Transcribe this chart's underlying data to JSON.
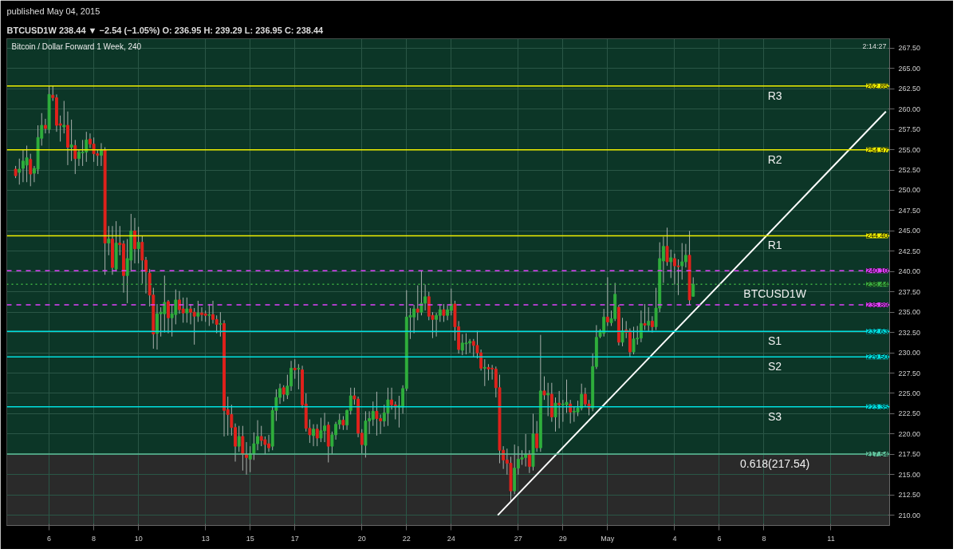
{
  "chart_data": {
    "type": "candlestick",
    "title": "Bitcoin / Dollar Forward 1 Week, 240",
    "subtitle": "BTCUSD1W  238.44 ▼ −2.54 (−1.05%)  O: 236.95  H: 239.29  L: 236.95  C: 238.44",
    "annotations": [
      "published May 04, 2015",
      "2:14:27",
      {
        "text": "262.85",
        "x": "2015-05-13T15:00",
        "y": 262.85
      },
      {
        "text": "254.97",
        "x": "2015-05-13T15:00",
        "y": 254.97
      },
      {
        "text": "244.40",
        "x": "2015-05-13T15:00",
        "y": 244.4
      },
      {
        "text": "240.10",
        "x": "2015-05-13T15:00",
        "y": 240.1
      },
      {
        "text": "238.44",
        "x": "2015-05-13T15:00",
        "y": 238.44
      },
      {
        "text": "235.89",
        "x": "2015-05-13T15:00",
        "y": 235.89
      },
      {
        "text": "232.63",
        "x": "2015-05-13T15:00",
        "y": 232.63
      },
      {
        "text": "229.50",
        "x": "2015-05-13T15:00",
        "y": 229.5
      },
      {
        "text": "223.35",
        "x": "2015-05-13T15:00",
        "y": 223.35
      },
      {
        "text": "217.54",
        "x": "2015-05-13T15:00",
        "y": 217.54
      }
    ],
    "x": [
      "2015-04-04T12:00",
      "2015-04-04T16:00",
      "2015-04-04T20:00",
      "2015-04-05T00:00",
      "2015-04-05T04:00",
      "2015-04-05T08:00",
      "2015-04-05T12:00",
      "2015-04-05T16:00",
      "2015-04-05T20:00",
      "2015-04-06T00:00",
      "2015-04-06T04:00",
      "2015-04-06T08:00",
      "2015-04-06T12:00",
      "2015-04-06T16:00",
      "2015-04-06T20:00",
      "2015-04-07T00:00",
      "2015-04-07T04:00",
      "2015-04-07T08:00",
      "2015-04-07T12:00",
      "2015-04-07T16:00",
      "2015-04-07T20:00",
      "2015-04-08T00:00",
      "2015-04-08T04:00",
      "2015-04-08T08:00",
      "2015-04-08T12:00",
      "2015-04-08T16:00",
      "2015-04-08T20:00",
      "2015-04-09T00:00",
      "2015-04-09T04:00",
      "2015-04-09T08:00",
      "2015-04-09T12:00",
      "2015-04-09T16:00",
      "2015-04-09T20:00",
      "2015-04-10T00:00",
      "2015-04-10T04:00",
      "2015-04-10T08:00",
      "2015-04-10T12:00",
      "2015-04-10T16:00",
      "2015-04-10T20:00",
      "2015-04-11T00:00",
      "2015-04-11T04:00",
      "2015-04-11T08:00",
      "2015-04-11T12:00",
      "2015-04-11T16:00",
      "2015-04-11T20:00",
      "2015-04-12T00:00",
      "2015-04-12T04:00",
      "2015-04-12T08:00",
      "2015-04-12T12:00",
      "2015-04-12T16:00",
      "2015-04-12T20:00",
      "2015-04-13T00:00",
      "2015-04-13T04:00",
      "2015-04-13T08:00",
      "2015-04-13T12:00",
      "2015-04-13T16:00",
      "2015-04-13T20:00",
      "2015-04-14T00:00",
      "2015-04-14T04:00",
      "2015-04-14T08:00",
      "2015-04-14T12:00",
      "2015-04-14T16:00",
      "2015-04-14T20:00",
      "2015-04-15T00:00",
      "2015-04-15T04:00",
      "2015-04-15T08:00",
      "2015-04-15T12:00",
      "2015-04-15T16:00",
      "2015-04-15T20:00",
      "2015-04-16T00:00",
      "2015-04-16T04:00",
      "2015-04-16T08:00",
      "2015-04-16T12:00",
      "2015-04-16T16:00",
      "2015-04-16T20:00",
      "2015-04-17T00:00",
      "2015-04-17T04:00",
      "2015-04-17T08:00",
      "2015-04-17T12:00",
      "2015-04-17T16:00",
      "2015-04-17T20:00",
      "2015-04-18T00:00",
      "2015-04-18T04:00",
      "2015-04-18T08:00",
      "2015-04-18T12:00",
      "2015-04-18T16:00",
      "2015-04-18T20:00",
      "2015-04-19T00:00",
      "2015-04-19T04:00",
      "2015-04-19T08:00",
      "2015-04-19T12:00",
      "2015-04-19T16:00",
      "2015-04-19T20:00",
      "2015-04-20T00:00",
      "2015-04-20T04:00",
      "2015-04-20T08:00",
      "2015-04-20T12:00",
      "2015-04-20T16:00",
      "2015-04-20T20:00",
      "2015-04-21T00:00",
      "2015-04-21T04:00",
      "2015-04-21T08:00",
      "2015-04-21T12:00",
      "2015-04-21T16:00",
      "2015-04-21T20:00",
      "2015-04-22T00:00",
      "2015-04-22T04:00",
      "2015-04-22T08:00",
      "2015-04-22T12:00",
      "2015-04-22T16:00",
      "2015-04-22T20:00",
      "2015-04-23T00:00",
      "2015-04-23T04:00",
      "2015-04-23T08:00",
      "2015-04-23T12:00",
      "2015-04-23T16:00",
      "2015-04-23T20:00",
      "2015-04-24T00:00",
      "2015-04-24T04:00",
      "2015-04-24T08:00",
      "2015-04-24T12:00",
      "2015-04-24T16:00",
      "2015-04-24T20:00",
      "2015-04-25T00:00",
      "2015-04-25T04:00",
      "2015-04-25T08:00",
      "2015-04-25T12:00",
      "2015-04-25T16:00",
      "2015-04-25T20:00",
      "2015-04-26T00:00",
      "2015-04-26T04:00",
      "2015-04-26T08:00",
      "2015-04-26T12:00",
      "2015-04-26T16:00",
      "2015-04-26T20:00",
      "2015-04-27T00:00",
      "2015-04-27T04:00",
      "2015-04-27T08:00",
      "2015-04-27T12:00",
      "2015-04-27T16:00",
      "2015-04-27T20:00",
      "2015-04-28T00:00",
      "2015-04-28T04:00",
      "2015-04-28T08:00",
      "2015-04-28T12:00",
      "2015-04-28T16:00",
      "2015-04-28T20:00",
      "2015-04-29T00:00",
      "2015-04-29T04:00",
      "2015-04-29T08:00",
      "2015-04-29T12:00",
      "2015-04-29T16:00",
      "2015-04-29T20:00",
      "2015-04-30T00:00",
      "2015-04-30T04:00",
      "2015-04-30T08:00",
      "2015-04-30T12:00",
      "2015-04-30T16:00",
      "2015-04-30T20:00",
      "2015-05-01T00:00",
      "2015-05-01T04:00",
      "2015-05-01T08:00",
      "2015-05-01T12:00",
      "2015-05-01T16:00",
      "2015-05-01T20:00",
      "2015-05-02T00:00",
      "2015-05-02T04:00",
      "2015-05-02T08:00",
      "2015-05-02T12:00",
      "2015-05-02T16:00",
      "2015-05-02T20:00",
      "2015-05-03T00:00",
      "2015-05-03T04:00",
      "2015-05-03T08:00",
      "2015-05-03T12:00",
      "2015-05-03T16:00",
      "2015-05-03T20:00",
      "2015-05-04T00:00",
      "2015-05-04T04:00",
      "2015-05-04T08:00",
      "2015-05-04T12:00",
      "2015-05-04T16:00",
      "2015-05-04T20:00"
    ],
    "ohlc": [
      [
        252.6,
        253.0,
        251.5,
        251.8
      ],
      [
        252.2,
        253.9,
        250.7,
        252.6
      ],
      [
        252.7,
        255.0,
        251.0,
        253.6
      ],
      [
        253.1,
        255.5,
        251.0,
        254.0
      ],
      [
        253.8,
        254.5,
        250.5,
        252.0
      ],
      [
        252.1,
        253.0,
        251.0,
        252.7
      ],
      [
        252.6,
        258.0,
        252.0,
        256.5
      ],
      [
        256.4,
        259.5,
        255.5,
        258.0
      ],
      [
        258.0,
        258.8,
        257.0,
        257.6
      ],
      [
        257.5,
        262.9,
        257.0,
        261.8
      ],
      [
        261.7,
        262.85,
        261.0,
        261.4
      ],
      [
        261.4,
        261.8,
        257.2,
        258.0
      ],
      [
        258.2,
        259.2,
        256.0,
        258.0
      ],
      [
        257.8,
        261.0,
        257.0,
        258.0
      ],
      [
        258.0,
        259.7,
        253.1,
        255.3
      ],
      [
        255.3,
        258.7,
        253.6,
        255.6
      ],
      [
        255.5,
        256.2,
        252.0,
        253.9
      ],
      [
        253.9,
        255.0,
        253.0,
        254.7
      ],
      [
        254.6,
        256.2,
        253.0,
        254.7
      ],
      [
        254.7,
        257.2,
        253.5,
        256.2
      ],
      [
        256.3,
        257.0,
        255.2,
        255.7
      ],
      [
        255.7,
        256.5,
        253.5,
        254.5
      ],
      [
        254.5,
        255.0,
        253.0,
        254.3
      ],
      [
        254.3,
        255.8,
        253.0,
        255.0
      ],
      [
        255.0,
        255.3,
        239.6,
        243.5
      ],
      [
        243.5,
        245.6,
        242.0,
        244.0
      ],
      [
        244.0,
        245.6,
        239.6,
        240.5
      ],
      [
        240.3,
        246.2,
        240.0,
        243.5
      ],
      [
        243.5,
        245.6,
        242.0,
        243.3
      ],
      [
        243.4,
        243.8,
        237.4,
        239.5
      ],
      [
        239.5,
        244.0,
        236.1,
        241.6
      ],
      [
        241.4,
        247.1,
        240.0,
        245.0
      ],
      [
        245.0,
        246.6,
        241.0,
        242.8
      ],
      [
        242.8,
        245.5,
        241.0,
        243.6
      ],
      [
        243.6,
        244.4,
        238.5,
        241.4
      ],
      [
        241.4,
        241.8,
        237.3,
        240.0
      ],
      [
        239.8,
        240.3,
        235.7,
        237.1
      ],
      [
        237.1,
        238.0,
        230.5,
        232.3
      ],
      [
        232.4,
        236.0,
        230.4,
        234.8
      ],
      [
        234.8,
        235.6,
        232.0,
        235.0
      ],
      [
        234.8,
        239.5,
        232.5,
        236.2
      ],
      [
        236.3,
        236.5,
        232.4,
        234.3
      ],
      [
        234.3,
        236.0,
        232.0,
        234.8
      ],
      [
        234.7,
        237.8,
        233.5,
        236.5
      ],
      [
        236.5,
        237.6,
        234.8,
        235.3
      ],
      [
        235.4,
        236.8,
        233.7,
        234.9
      ],
      [
        234.9,
        236.8,
        233.7,
        235.4
      ],
      [
        235.4,
        236.0,
        233.5,
        235.0
      ],
      [
        235.0,
        235.5,
        231.0,
        234.5
      ],
      [
        234.5,
        236.4,
        233.8,
        234.9
      ],
      [
        234.9,
        235.6,
        233.9,
        234.7
      ],
      [
        234.8,
        235.2,
        233.8,
        234.6
      ],
      [
        234.6,
        236.0,
        233.3,
        234.7
      ],
      [
        234.7,
        236.4,
        233.6,
        234.1
      ],
      [
        234.1,
        234.6,
        232.4,
        233.5
      ],
      [
        233.5,
        235.0,
        232.0,
        233.6
      ],
      [
        233.6,
        234.0,
        219.7,
        222.9
      ],
      [
        223.0,
        224.6,
        219.8,
        222.4
      ],
      [
        222.4,
        223.6,
        219.8,
        220.8
      ],
      [
        220.8,
        221.3,
        216.6,
        218.5
      ],
      [
        218.5,
        221.0,
        217.8,
        219.7
      ],
      [
        219.7,
        221.0,
        215.5,
        217.5
      ],
      [
        217.5,
        219.0,
        215.0,
        217.1
      ],
      [
        216.9,
        218.5,
        215.3,
        217.6
      ],
      [
        217.6,
        220.2,
        216.8,
        218.8
      ],
      [
        218.8,
        221.7,
        218.0,
        219.7
      ],
      [
        219.7,
        221.0,
        218.5,
        219.2
      ],
      [
        219.3,
        219.7,
        217.5,
        218.7
      ],
      [
        218.8,
        219.9,
        217.8,
        218.3
      ],
      [
        218.5,
        223.4,
        218.0,
        222.9
      ],
      [
        222.9,
        225.5,
        221.6,
        224.5
      ],
      [
        224.5,
        226.2,
        223.7,
        225.6
      ],
      [
        225.7,
        226.0,
        224.0,
        224.9
      ],
      [
        224.8,
        227.3,
        224.3,
        225.9
      ],
      [
        225.9,
        229.0,
        225.3,
        228.1
      ],
      [
        228.1,
        229.2,
        226.8,
        227.9
      ],
      [
        228.0,
        228.6,
        225.5,
        228.1
      ],
      [
        227.9,
        228.4,
        223.2,
        223.6
      ],
      [
        223.7,
        225.0,
        220.3,
        220.7
      ],
      [
        220.7,
        221.8,
        218.9,
        219.9
      ],
      [
        219.8,
        221.2,
        218.5,
        220.6
      ],
      [
        220.6,
        221.2,
        218.5,
        219.5
      ],
      [
        219.5,
        222.0,
        219.0,
        220.4
      ],
      [
        220.4,
        222.6,
        219.0,
        221.0
      ],
      [
        221.1,
        221.5,
        216.5,
        218.5
      ],
      [
        218.5,
        220.3,
        217.5,
        219.9
      ],
      [
        219.9,
        221.5,
        219.3,
        221.2
      ],
      [
        221.2,
        222.5,
        220.6,
        221.7
      ],
      [
        221.7,
        222.2,
        220.5,
        221.1
      ],
      [
        221.1,
        223.0,
        220.5,
        222.9
      ],
      [
        222.9,
        225.7,
        222.4,
        224.7
      ],
      [
        224.7,
        225.7,
        223.6,
        224.3
      ],
      [
        224.3,
        224.6,
        219.6,
        220.1
      ],
      [
        220.1,
        220.6,
        217.6,
        218.7
      ],
      [
        218.6,
        222.8,
        217.1,
        221.6
      ],
      [
        221.6,
        222.8,
        220.0,
        221.9
      ],
      [
        221.8,
        224.0,
        221.0,
        222.8
      ],
      [
        222.8,
        225.2,
        219.8,
        221.9
      ],
      [
        221.9,
        222.4,
        220.0,
        221.6
      ],
      [
        221.6,
        223.6,
        220.9,
        222.6
      ],
      [
        222.6,
        225.7,
        221.0,
        224.2
      ],
      [
        224.2,
        225.7,
        223.0,
        223.6
      ],
      [
        223.6,
        224.0,
        221.8,
        223.3
      ],
      [
        223.3,
        224.7,
        220.8,
        223.5
      ],
      [
        223.3,
        226.0,
        222.5,
        225.6
      ],
      [
        225.6,
        237.7,
        225.3,
        234.4
      ],
      [
        234.4,
        235.5,
        231.7,
        234.6
      ],
      [
        234.4,
        235.9,
        232.4,
        235.4
      ],
      [
        235.4,
        238.3,
        234.0,
        235.0
      ],
      [
        235.0,
        240.1,
        234.6,
        236.1
      ],
      [
        236.1,
        238.4,
        235.2,
        236.9
      ],
      [
        236.9,
        237.5,
        234.0,
        234.5
      ],
      [
        234.6,
        235.0,
        231.8,
        234.1
      ],
      [
        234.1,
        234.9,
        232.0,
        234.6
      ],
      [
        234.6,
        236.0,
        233.8,
        235.3
      ],
      [
        235.3,
        236.0,
        233.8,
        234.6
      ],
      [
        234.6,
        235.8,
        234.0,
        235.3
      ],
      [
        235.2,
        237.9,
        234.6,
        236.0
      ],
      [
        236.0,
        236.4,
        231.5,
        233.2
      ],
      [
        233.2,
        233.9,
        229.9,
        230.4
      ],
      [
        230.3,
        232.3,
        229.7,
        231.2
      ],
      [
        231.1,
        232.4,
        229.8,
        231.2
      ],
      [
        231.2,
        231.7,
        230.0,
        231.4
      ],
      [
        231.4,
        231.7,
        229.5,
        230.9
      ],
      [
        230.9,
        232.7,
        229.3,
        230.0
      ],
      [
        230.0,
        230.4,
        227.8,
        228.1
      ],
      [
        228.1,
        229.2,
        225.9,
        228.2
      ],
      [
        228.2,
        228.6,
        226.6,
        228.0
      ],
      [
        228.1,
        228.5,
        226.7,
        228.0
      ],
      [
        228.0,
        228.3,
        224.5,
        225.7
      ],
      [
        225.7,
        227.3,
        216.4,
        218.0
      ],
      [
        218.0,
        218.5,
        215.7,
        216.8
      ],
      [
        216.8,
        218.2,
        215.0,
        216.4
      ],
      [
        216.4,
        217.2,
        211.6,
        213.0
      ],
      [
        213.0,
        218.7,
        212.6,
        215.8
      ],
      [
        215.8,
        218.5,
        215.0,
        216.9
      ],
      [
        216.9,
        218.0,
        216.2,
        217.1
      ],
      [
        217.1,
        220.0,
        216.0,
        217.5
      ],
      [
        217.5,
        218.0,
        215.2,
        216.0
      ],
      [
        216.0,
        222.5,
        215.5,
        220.0
      ],
      [
        220.0,
        221.6,
        217.8,
        218.3
      ],
      [
        218.3,
        232.2,
        217.8,
        225.3
      ],
      [
        225.3,
        227.1,
        224.2,
        224.8
      ],
      [
        224.8,
        226.3,
        222.2,
        225.0
      ],
      [
        224.9,
        226.3,
        221.5,
        222.1
      ],
      [
        222.1,
        224.5,
        220.3,
        223.8
      ],
      [
        223.8,
        225.3,
        220.7,
        223.6
      ],
      [
        223.6,
        224.2,
        221.5,
        223.7
      ],
      [
        223.6,
        226.7,
        222.6,
        223.9
      ],
      [
        223.7,
        224.2,
        221.3,
        222.7
      ],
      [
        222.7,
        223.4,
        221.5,
        222.8
      ],
      [
        222.7,
        224.1,
        222.2,
        223.2
      ],
      [
        223.2,
        226.2,
        222.9,
        224.9
      ],
      [
        224.9,
        225.7,
        223.4,
        223.7
      ],
      [
        223.7,
        224.2,
        222.3,
        223.2
      ],
      [
        223.2,
        229.9,
        222.8,
        228.3
      ],
      [
        228.3,
        233.4,
        228.0,
        231.9
      ],
      [
        232.0,
        232.9,
        231.8,
        232.7
      ],
      [
        232.4,
        235.4,
        232.0,
        234.4
      ],
      [
        234.4,
        239.3,
        233.3,
        233.8
      ],
      [
        233.7,
        235.2,
        233.3,
        234.2
      ],
      [
        234.2,
        238.6,
        233.9,
        237.2
      ],
      [
        235.6,
        235.9,
        230.9,
        231.3
      ],
      [
        231.3,
        234.3,
        230.8,
        232.7
      ],
      [
        232.8,
        233.9,
        231.8,
        232.5
      ],
      [
        232.7,
        233.0,
        229.5,
        230.1
      ],
      [
        230.1,
        233.2,
        229.8,
        231.7
      ],
      [
        231.7,
        233.3,
        231.0,
        231.8
      ],
      [
        231.8,
        235.2,
        231.3,
        233.6
      ],
      [
        233.6,
        236.0,
        232.8,
        233.4
      ],
      [
        233.4,
        235.6,
        232.6,
        233.9
      ],
      [
        233.9,
        234.5,
        232.5,
        233.2
      ],
      [
        233.2,
        238.0,
        232.8,
        235.5
      ],
      [
        235.5,
        243.6,
        235.0,
        241.6
      ],
      [
        241.3,
        244.3,
        238.6,
        243.1
      ],
      [
        243.1,
        245.4,
        240.7,
        241.2
      ],
      [
        241.2,
        242.7,
        239.2,
        241.7
      ],
      [
        241.6,
        242.2,
        238.4,
        240.7
      ],
      [
        240.7,
        241.5,
        237.1,
        240.6
      ],
      [
        240.7,
        243.5,
        239.0,
        241.2
      ],
      [
        241.2,
        243.4,
        240.5,
        242.0
      ],
      [
        242.0,
        245.0,
        235.9,
        236.5
      ],
      [
        236.95,
        239.29,
        236.95,
        238.44
      ]
    ],
    "series": [
      {
        "type": "line",
        "x": [
          "2015-04-26T02:00",
          "2015-05-13T11:00"
        ],
        "values": [
          210.0,
          259.7
        ],
        "color": "#ffffff"
      }
    ],
    "ref_lines": [
      {
        "axis": "y",
        "value": 262.85,
        "label": "R3",
        "color": "#f0f000",
        "line_style": "solid"
      },
      {
        "axis": "y",
        "value": 254.97,
        "label": "R2",
        "color": "#f0f000",
        "line_style": "solid"
      },
      {
        "axis": "y",
        "value": 244.4,
        "label": "R1",
        "color": "#f0f000",
        "line_style": "solid"
      },
      {
        "axis": "y",
        "value": 240.1,
        "label": null,
        "color": "#e040fb",
        "line_style": "dashed"
      },
      {
        "axis": "y",
        "value": 238.44,
        "label": "BTCUSD1W",
        "color": "#3cb043",
        "line_style": "dotted"
      },
      {
        "axis": "y",
        "value": 235.89,
        "label": null,
        "color": "#e040fb",
        "line_style": "dashed"
      },
      {
        "axis": "y",
        "value": 232.63,
        "label": "S1",
        "color": "#00e0e0",
        "line_style": "solid"
      },
      {
        "axis": "y",
        "value": 229.5,
        "label": "S2",
        "color": "#00e0e0",
        "line_style": "solid"
      },
      {
        "axis": "y",
        "value": 223.35,
        "label": "S3",
        "color": "#00e0e0",
        "line_style": "solid"
      },
      {
        "axis": "y",
        "value": 217.54,
        "label": "0.618(217.54)",
        "color": "#5fbf9a",
        "line_style": "solid"
      }
    ],
    "bands": [
      {
        "axis": "y",
        "from": 217.54,
        "to": 268.66,
        "color": "#0c3627"
      },
      {
        "axis": "y",
        "from": 208.74,
        "to": 217.54,
        "color": "#2a2a2a"
      }
    ],
    "xlim": [
      "2015-04-04T02:30",
      "2015-05-13T15:00"
    ],
    "ylim": [
      208.74,
      268.66
    ],
    "xticks": [
      {
        "value": "2015-04-06",
        "label": "6"
      },
      {
        "value": "2015-04-08",
        "label": "8"
      },
      {
        "value": "2015-04-10",
        "label": "10"
      },
      {
        "value": "2015-04-13",
        "label": "13"
      },
      {
        "value": "2015-04-15",
        "label": "15"
      },
      {
        "value": "2015-04-17",
        "label": "17"
      },
      {
        "value": "2015-04-20",
        "label": "20"
      },
      {
        "value": "2015-04-22",
        "label": "22"
      },
      {
        "value": "2015-04-24",
        "label": "24"
      },
      {
        "value": "2015-04-27",
        "label": "27"
      },
      {
        "value": "2015-04-29",
        "label": "29"
      },
      {
        "value": "2015-05-01",
        "label": "May"
      },
      {
        "value": "2015-05-04",
        "label": "4"
      },
      {
        "value": "2015-05-06",
        "label": "6"
      },
      {
        "value": "2015-05-08",
        "label": "8"
      },
      {
        "value": "2015-05-11",
        "label": "11"
      }
    ],
    "yticks": [
      {
        "value": 210,
        "label": "210.00"
      },
      {
        "value": 212.5,
        "label": "212.50"
      },
      {
        "value": 215,
        "label": "215.00"
      },
      {
        "value": 217.5,
        "label": "217.50"
      },
      {
        "value": 220,
        "label": "220.00"
      },
      {
        "value": 222.5,
        "label": "222.50"
      },
      {
        "value": 225,
        "label": "225.00"
      },
      {
        "value": 227.5,
        "label": "227.50"
      },
      {
        "value": 230,
        "label": "230.00"
      },
      {
        "value": 232.5,
        "label": "232.50"
      },
      {
        "value": 235,
        "label": "235.00"
      },
      {
        "value": 237.5,
        "label": "237.50"
      },
      {
        "value": 240,
        "label": "240.00"
      },
      {
        "value": 242.5,
        "label": "242.50"
      },
      {
        "value": 245,
        "label": "245.00"
      },
      {
        "value": 247.5,
        "label": "247.50"
      },
      {
        "value": 250,
        "label": "250.00"
      },
      {
        "value": 252.5,
        "label": "252.50"
      },
      {
        "value": 255,
        "label": "255.00"
      },
      {
        "value": 257.5,
        "label": "257.50"
      },
      {
        "value": 260,
        "label": "260.00"
      },
      {
        "value": 262.5,
        "label": "262.50"
      },
      {
        "value": 265,
        "label": "265.00"
      },
      {
        "value": 267.5,
        "label": "267.50"
      }
    ],
    "grid": true
  }
}
